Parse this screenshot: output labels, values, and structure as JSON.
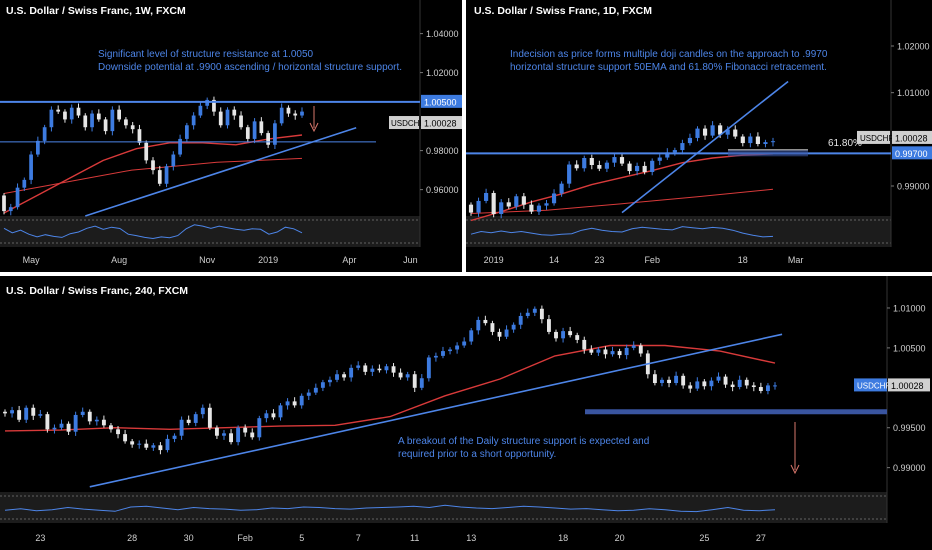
{
  "colors": {
    "bg": "#000000",
    "separator": "#ffffff",
    "candle_up": "#3d7be0",
    "candle_down": "#e6e6e6",
    "ema_red": "#d83a3a",
    "line_blue": "#4d85e8",
    "level_navy": "#3a55a0",
    "arrow": "#d9776c",
    "annotation": "#4d85e8",
    "axis_text": "#cfcfcf",
    "title": "#ffffff",
    "osc_bg": "#1c1c1c",
    "osc_line": "#4d85e8",
    "tag_blue": "#3d7be0",
    "tag_gray": "#d0d0d0"
  },
  "chart_data": [
    {
      "id": "weekly",
      "type": "candlestick",
      "title": "U.S. Dollar / Swiss Franc, 1W, FXCM",
      "annotation": [
        "Significant level of structure resistance at 1.0050",
        "Downside potential at .9900 ascending / horizontal structure support."
      ],
      "ylim": [
        0.9475,
        1.048
      ],
      "y_ticks": [
        "1.04000",
        "1.02000",
        "0.98000",
        "0.96000"
      ],
      "y_tick_values": [
        1.04,
        1.02,
        0.98,
        0.96
      ],
      "x_labels": [
        "May",
        "Aug",
        "Nov",
        "2019",
        "Apr",
        "Jun"
      ],
      "x_label_index": [
        4,
        17,
        30,
        39,
        51,
        60
      ],
      "x_count": 64,
      "start": 0.957,
      "closes": [
        0.949,
        0.951,
        0.961,
        0.965,
        0.978,
        0.985,
        0.992,
        1.001,
        1.0,
        0.996,
        1.002,
        0.998,
        0.992,
        0.999,
        0.996,
        0.99,
        1.001,
        0.996,
        0.993,
        0.991,
        0.984,
        0.975,
        0.97,
        0.963,
        0.972,
        0.978,
        0.986,
        0.993,
        0.998,
        1.003,
        1.006,
        1.0,
        0.993,
        1.001,
        0.998,
        0.992,
        0.986,
        0.995,
        0.989,
        0.983,
        0.994,
        1.002,
        0.999,
        0.998,
        1.0
      ],
      "tags": [
        {
          "label": "1.00500",
          "value": 1.005,
          "style": "blue"
        },
        {
          "label": "USDCHF",
          "value": 1.0003,
          "style": "gray"
        },
        {
          "label": "1.00028",
          "value": 1.0003,
          "style": "gray"
        }
      ],
      "resistance": 1.005,
      "thin_level": 0.9845,
      "trendline": [
        {
          "i": 12,
          "v": 0.9465
        },
        {
          "i": 52,
          "v": 0.9917
        }
      ],
      "ema_values": [
        0.948,
        0.957,
        0.966,
        0.975,
        0.981,
        0.984,
        0.984,
        0.983,
        0.986,
        0.988
      ],
      "sma_values": [
        0.958,
        0.962,
        0.966,
        0.97,
        0.972,
        0.974,
        0.975,
        0.976
      ],
      "osc": [
        0.62,
        0.45,
        0.55,
        0.4,
        0.3,
        0.38,
        0.32,
        0.28,
        0.42,
        0.48,
        0.62,
        0.7,
        0.58,
        0.66,
        0.61,
        0.4,
        0.35,
        0.28,
        0.24,
        0.3,
        0.27,
        0.35,
        0.6,
        0.75,
        0.7,
        0.62,
        0.7,
        0.64,
        0.58,
        0.55,
        0.6,
        0.58,
        0.4,
        0.48,
        0.66,
        0.6,
        0.45
      ]
    },
    {
      "id": "daily",
      "type": "candlestick",
      "title": "U.S. Dollar / Swiss Franc, 1D, FXCM",
      "annotation": [
        "Indecision as price forms multiple doji candles on the approach to .9970",
        "horizontal structure support 50EMA and 61.80% Fibonacci retracement."
      ],
      "ylim": [
        0.984,
        1.026
      ],
      "y_ticks": [
        "1.02000",
        "1.01000",
        "0.99000"
      ],
      "y_tick_values": [
        1.02,
        1.01,
        0.99
      ],
      "x_labels": [
        "2019",
        "14",
        "23",
        "Feb",
        "18",
        "Mar"
      ],
      "x_label_index": [
        3,
        11,
        17,
        24,
        36,
        43
      ],
      "x_count": 48,
      "start": 0.986,
      "closes": [
        0.9843,
        0.9868,
        0.9885,
        0.984,
        0.9865,
        0.9856,
        0.9878,
        0.986,
        0.9845,
        0.9858,
        0.9863,
        0.9884,
        0.9905,
        0.9946,
        0.9938,
        0.996,
        0.9945,
        0.9937,
        0.995,
        0.9962,
        0.9948,
        0.9932,
        0.9943,
        0.993,
        0.9954,
        0.9961,
        0.9972,
        0.9977,
        0.9992,
        1.0003,
        1.0023,
        1.0008,
        1.003,
        1.001,
        1.0021,
        1.0006,
        0.9992,
        1.0006,
        0.999,
        0.9994,
        0.9996
      ],
      "tags": [
        {
          "label": "USDCHF",
          "value": 1.0003,
          "style": "gray_left"
        },
        {
          "label": "1.00028",
          "value": 1.0003,
          "style": "gray"
        },
        {
          "label": "0.99700",
          "value": 0.997,
          "style": "blue"
        }
      ],
      "support": 0.997,
      "fib_label": "61.80%",
      "fib_value": 0.9973,
      "trendline": [
        {
          "i": 20,
          "v": 0.9843
        },
        {
          "i": 42,
          "v": 1.0124
        }
      ],
      "ema_values": [
        0.9826,
        0.9845,
        0.9866,
        0.9883,
        0.9903,
        0.9918,
        0.9933,
        0.995,
        0.996,
        0.9966,
        0.9969
      ],
      "sma_values": [
        0.9841,
        0.9848,
        0.9862,
        0.9877,
        0.9893
      ],
      "osc": [
        0.4,
        0.5,
        0.45,
        0.52,
        0.46,
        0.5,
        0.44,
        0.38,
        0.36,
        0.4,
        0.42,
        0.55,
        0.62,
        0.55,
        0.5,
        0.48,
        0.6,
        0.66,
        0.62,
        0.58,
        0.56,
        0.68,
        0.64,
        0.6,
        0.65,
        0.62,
        0.55,
        0.44,
        0.36,
        0.3,
        0.32
      ]
    },
    {
      "id": "h4",
      "type": "candlestick",
      "title": "U.S. Dollar / Swiss Franc, 240, FXCM",
      "annotation": [
        "A breakout of the Daily structure support is expected and",
        "required prior to a short opportunity."
      ],
      "ylim": [
        0.9872,
        1.0115
      ],
      "y_ticks": [
        "1.01000",
        "1.00500",
        "0.99500",
        "0.99000"
      ],
      "y_tick_values": [
        1.01,
        1.005,
        0.995,
        0.99
      ],
      "x_labels": [
        "23",
        "28",
        "30",
        "Feb",
        "5",
        "7",
        "11",
        "13",
        "18",
        "20",
        "25",
        "27"
      ],
      "x_label_index": [
        5,
        18,
        26,
        34,
        42,
        50,
        58,
        66,
        79,
        87,
        99,
        107
      ],
      "x_count": 114,
      "start": 0.997,
      "closes": [
        0.9968,
        0.9972,
        0.996,
        0.9975,
        0.9965,
        0.9967,
        0.9948,
        0.995,
        0.9955,
        0.9945,
        0.9966,
        0.997,
        0.9958,
        0.996,
        0.9953,
        0.9948,
        0.9942,
        0.9933,
        0.9929,
        0.993,
        0.9925,
        0.9928,
        0.9922,
        0.9936,
        0.994,
        0.996,
        0.9956,
        0.9967,
        0.9975,
        0.995,
        0.994,
        0.9943,
        0.9932,
        0.995,
        0.9944,
        0.9938,
        0.9962,
        0.9968,
        0.9963,
        0.9978,
        0.9983,
        0.9978,
        0.999,
        0.9994,
        1.0,
        1.0007,
        1.001,
        1.0017,
        1.0013,
        1.0025,
        1.0028,
        1.002,
        1.0024,
        1.0022,
        1.0027,
        1.0019,
        1.0013,
        1.0017,
        1.0,
        1.0012,
        1.0038,
        1.004,
        1.0046,
        1.0048,
        1.0053,
        1.0058,
        1.0072,
        1.0085,
        1.0081,
        1.007,
        1.0064,
        1.0073,
        1.0079,
        1.009,
        1.0094,
        1.0099,
        1.0086,
        1.007,
        1.0062,
        1.0071,
        1.0066,
        1.006,
        1.0048,
        1.0044,
        1.0048,
        1.0042,
        1.0046,
        1.0041,
        1.005,
        1.0053,
        1.0043,
        1.0017,
        1.0006,
        1.001,
        1.0006,
        1.0015,
        1.0003,
        0.9999,
        1.0008,
        1.0002,
        1.0009,
        1.0014,
        1.0004,
        1.0001,
        1.001,
        1.0003,
        1.0001,
        0.9996,
        1.0003,
        1.0003
      ],
      "tags": [
        {
          "label": "USDCHF",
          "value": 1.0003,
          "style": "blue_left"
        },
        {
          "label": "1.00028",
          "value": 1.0003,
          "style": "blue"
        }
      ],
      "support": 0.997,
      "trendline": [
        {
          "i": 12,
          "v": 0.9876
        },
        {
          "i": 110,
          "v": 1.0067
        }
      ],
      "ema_values": [
        0.9946,
        0.9947,
        0.995,
        0.9948,
        0.995,
        0.9952,
        0.9953,
        0.9964,
        0.999,
        1.0011,
        1.004,
        1.0053,
        1.0053,
        1.0046,
        1.0031
      ],
      "osc": [
        0.4,
        0.45,
        0.38,
        0.42,
        0.5,
        0.44,
        0.4,
        0.36,
        0.52,
        0.55,
        0.48,
        0.42,
        0.5,
        0.46,
        0.44,
        0.4,
        0.42,
        0.48,
        0.46,
        0.52,
        0.5,
        0.46,
        0.44,
        0.48,
        0.5,
        0.52,
        0.55,
        0.5,
        0.58,
        0.52,
        0.48,
        0.46,
        0.5,
        0.55,
        0.52,
        0.48,
        0.44,
        0.46,
        0.42,
        0.38,
        0.4,
        0.45,
        0.42,
        0.36,
        0.35,
        0.42,
        0.5,
        0.4,
        0.38,
        0.42
      ]
    }
  ]
}
